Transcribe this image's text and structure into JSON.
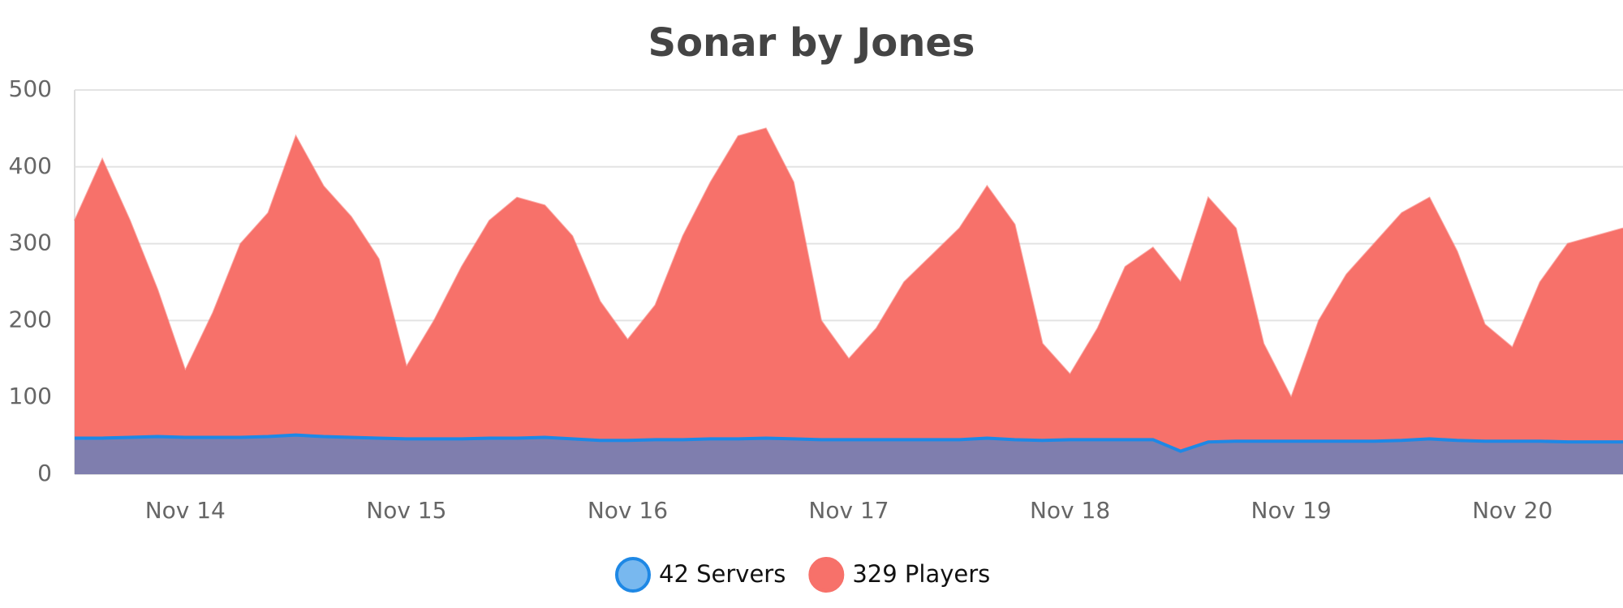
{
  "chart_data": {
    "type": "area",
    "title": "Sonar by Jones",
    "categories": [
      null,
      null,
      null,
      null,
      "Nov 14",
      null,
      null,
      null,
      null,
      null,
      null,
      null,
      "Nov 15",
      null,
      null,
      null,
      null,
      null,
      null,
      null,
      "Nov 16",
      null,
      null,
      null,
      null,
      null,
      null,
      null,
      "Nov 17",
      null,
      null,
      null,
      null,
      null,
      null,
      null,
      "Nov 18",
      null,
      null,
      null,
      null,
      null,
      null,
      null,
      "Nov 19",
      null,
      null,
      null,
      null,
      null,
      null,
      null,
      "Nov 20",
      null,
      null,
      null,
      null
    ],
    "series": [
      {
        "name": "42 Servers",
        "color": "#1e88e5",
        "values": [
          47,
          47,
          48,
          49,
          48,
          48,
          48,
          49,
          51,
          49,
          48,
          47,
          46,
          46,
          46,
          47,
          47,
          48,
          46,
          44,
          44,
          45,
          45,
          46,
          46,
          47,
          46,
          45,
          45,
          45,
          45,
          45,
          45,
          47,
          45,
          44,
          45,
          45,
          45,
          45,
          30,
          42,
          43,
          43,
          43,
          43,
          43,
          43,
          44,
          46,
          44,
          43,
          43,
          43,
          42,
          42,
          42
        ]
      },
      {
        "name": "329 Players",
        "color": "#f7716a",
        "values": [
          330,
          410,
          330,
          240,
          135,
          210,
          300,
          340,
          440,
          375,
          335,
          280,
          140,
          200,
          270,
          330,
          360,
          350,
          310,
          225,
          175,
          220,
          310,
          380,
          440,
          450,
          380,
          200,
          150,
          190,
          250,
          285,
          320,
          375,
          325,
          170,
          130,
          190,
          270,
          295,
          250,
          360,
          320,
          170,
          100,
          200,
          260,
          300,
          340,
          360,
          290,
          195,
          165,
          250,
          300,
          310,
          320
        ]
      }
    ],
    "ylim": [
      0,
      500
    ],
    "yticks": [
      0,
      100,
      200,
      300,
      400,
      500
    ],
    "grid": true
  }
}
